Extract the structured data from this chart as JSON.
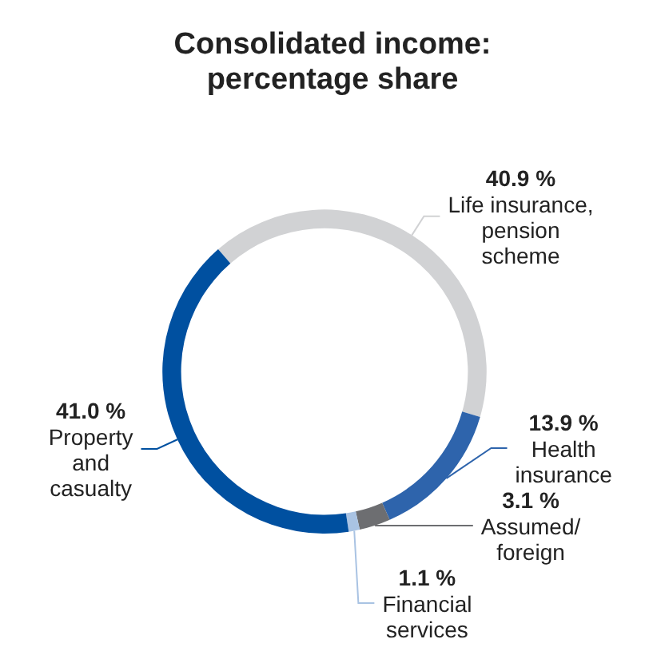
{
  "chart_data": {
    "type": "donut",
    "title": "Consolidated income:\npercentage share",
    "categories": [
      "Life insurance,\npension\nscheme",
      "Health\ninsurance",
      "Assumed/\nforeign",
      "Financial\nservices",
      "Property\nand\ncasualty"
    ],
    "values": [
      40.9,
      13.9,
      3.1,
      1.1,
      41.0
    ],
    "value_labels": [
      "40.9 %",
      "13.9 %",
      "3.1 %",
      "1.1 %",
      "41.0 %"
    ],
    "colors": [
      "#d1d2d4",
      "#2e64ac",
      "#6d6e71",
      "#a9c3e3",
      "#0050a0"
    ],
    "legend": false
  }
}
